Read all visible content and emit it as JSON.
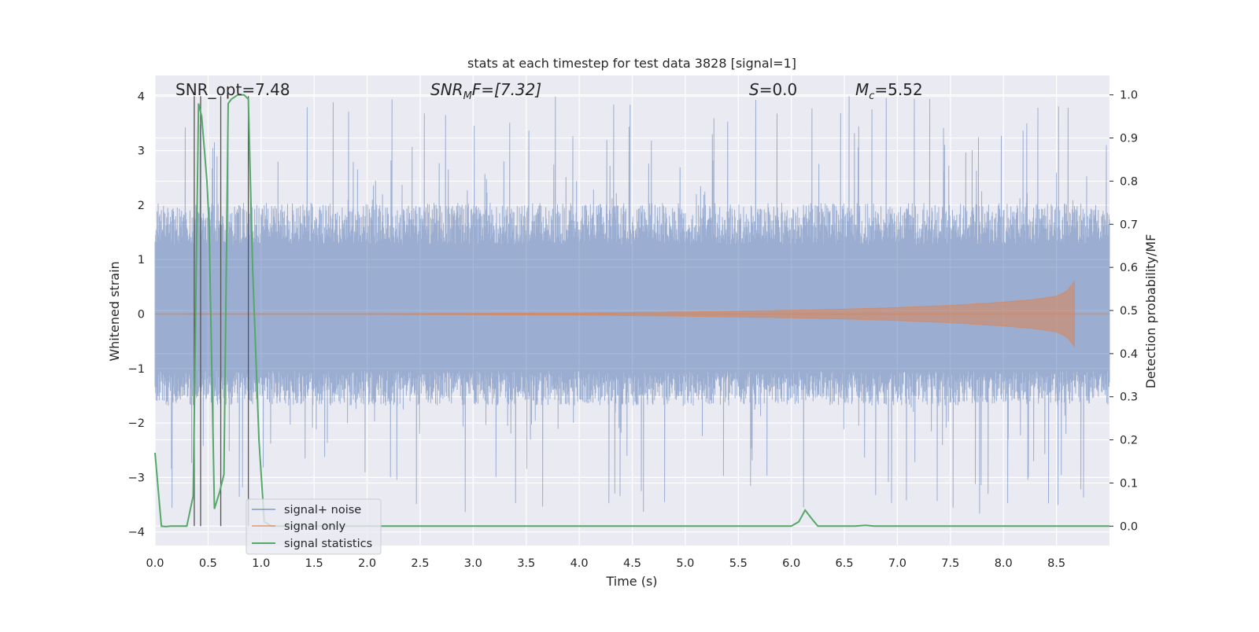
{
  "chart_data": {
    "type": "line",
    "title": "stats at each timestep for test data 3828 [signal=1]",
    "xlabel": "Time (s)",
    "ylabel_left": "Whitened strain",
    "ylabel_right": "Detection probability/MF",
    "xlim": [
      0.0,
      9.0
    ],
    "ylim_left": [
      -4.25,
      4.38
    ],
    "ylim_right": [
      -0.045,
      1.045
    ],
    "x_ticks": [
      "0.0",
      "0.5",
      "1.0",
      "1.5",
      "2.0",
      "2.5",
      "3.0",
      "3.5",
      "4.0",
      "4.5",
      "5.0",
      "5.5",
      "6.0",
      "6.5",
      "7.0",
      "7.5",
      "8.0",
      "8.5"
    ],
    "y_left_ticks": [
      "4",
      "3",
      "2",
      "1",
      "0",
      "−1",
      "−2",
      "−3",
      "−4"
    ],
    "y_left_tick_values": [
      4,
      3,
      2,
      1,
      0,
      -1,
      -2,
      -3,
      -4
    ],
    "y_right_ticks": [
      "1.0",
      "0.9",
      "0.8",
      "0.7",
      "0.6",
      "0.5",
      "0.4",
      "0.3",
      "0.2",
      "0.1",
      "0.0"
    ],
    "y_right_tick_values": [
      1.0,
      0.9,
      0.8,
      0.7,
      0.6,
      0.5,
      0.4,
      0.3,
      0.2,
      0.1,
      0.0
    ],
    "grid": true,
    "legend_position": "lower-left",
    "annotations": {
      "snr_opt": "SNR_opt=7.48",
      "snr_mf_base": "SNR",
      "snr_mf_sub": "M",
      "snr_mf_rest": "F=[7.32]",
      "s_var": "S",
      "s_rest": "=0.0",
      "mc_var": "M",
      "mc_sub": "c",
      "mc_rest": "=5.52"
    },
    "series": [
      {
        "name": "signal+ noise",
        "color": "#4c72b0",
        "axis": "left",
        "envelope": {
          "x": [
            0.0,
            9.0
          ],
          "typical_upper": 1.7,
          "typical_lower": -1.4,
          "peak_upper": 4.0,
          "peak_lower": -3.7
        }
      },
      {
        "name": "signal only",
        "color": "#dd8452",
        "axis": "left",
        "chirp": {
          "start": 0.0,
          "merger": 8.67,
          "end": 9.0,
          "amplitude_points": [
            [
              0.0,
              0.0
            ],
            [
              2.0,
              0.005
            ],
            [
              4.0,
              0.02
            ],
            [
              5.0,
              0.04
            ],
            [
              6.0,
              0.07
            ],
            [
              6.5,
              0.09
            ],
            [
              7.0,
              0.12
            ],
            [
              7.5,
              0.16
            ],
            [
              8.0,
              0.22
            ],
            [
              8.3,
              0.27
            ],
            [
              8.5,
              0.33
            ],
            [
              8.6,
              0.42
            ],
            [
              8.67,
              0.6
            ]
          ]
        }
      },
      {
        "name": "signal statistics",
        "color": "#55a868",
        "axis": "right",
        "x": [
          0.0,
          0.06,
          0.1,
          0.15,
          0.2,
          0.25,
          0.3,
          0.36,
          0.41,
          0.44,
          0.49,
          0.51,
          0.56,
          0.61,
          0.65,
          0.69,
          0.72,
          0.78,
          0.84,
          0.88,
          0.92,
          0.98,
          1.03,
          1.1,
          6.0,
          6.07,
          6.13,
          6.2,
          6.25,
          6.35,
          6.6,
          6.7,
          6.78,
          6.9,
          9.0
        ],
        "y": [
          0.17,
          0.0,
          -0.001,
          0.0,
          0.0,
          0.0,
          0.0,
          0.07,
          0.98,
          0.95,
          0.8,
          0.7,
          0.04,
          0.08,
          0.12,
          0.98,
          0.99,
          1.0,
          1.0,
          0.99,
          0.6,
          0.2,
          0.01,
          0.0,
          0.0,
          0.01,
          0.037,
          0.015,
          0.0,
          0.0,
          0.0,
          0.002,
          0.0,
          0.0,
          0.0
        ]
      }
    ],
    "vertical_markers": [
      0.37,
      0.43,
      0.62,
      0.88
    ]
  }
}
